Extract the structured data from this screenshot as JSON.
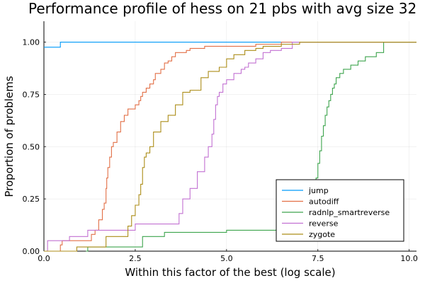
{
  "chart_data": {
    "type": "line",
    "title": "Performance profile of hess on 21 pbs with avg size 32",
    "xlabel": "Within this factor of the best (log scale)",
    "ylabel": "Proportion of problems",
    "xlim": [
      0,
      10.2
    ],
    "ylim": [
      0,
      1.1
    ],
    "xticks": [
      0,
      2.5,
      5,
      7.5,
      10
    ],
    "xtick_labels": [
      "0.0",
      "2.5",
      "5.0",
      "7.5",
      "10.0"
    ],
    "yticks": [
      0,
      0.25,
      0.5,
      0.75,
      1.0
    ],
    "ytick_labels": [
      "0.00",
      "0.25",
      "0.50",
      "0.75",
      "1.00"
    ],
    "grid": true,
    "legend_position": "bottom-right",
    "series": [
      {
        "name": "jump",
        "color": "#009af9",
        "x": [
          0,
          0.45,
          0.45,
          10.2
        ],
        "y": [
          0.976,
          0.976,
          1.0,
          1.0
        ]
      },
      {
        "name": "autodiff",
        "color": "#e26f46",
        "x": [
          0.4,
          0.45,
          0.5,
          1.3,
          1.4,
          1.5,
          1.6,
          1.65,
          1.7,
          1.72,
          1.75,
          1.8,
          1.85,
          1.9,
          2.0,
          2.1,
          2.2,
          2.3,
          2.5,
          2.6,
          2.65,
          2.7,
          2.8,
          2.9,
          3.0,
          3.05,
          3.2,
          3.3,
          3.4,
          3.5,
          3.6,
          3.8,
          3.9,
          4.0,
          4.2,
          4.4,
          4.6,
          5.0,
          5.2,
          5.8,
          5.9,
          6.5,
          10.2
        ],
        "y": [
          0.0,
          0.03,
          0.05,
          0.08,
          0.1,
          0.15,
          0.2,
          0.23,
          0.3,
          0.35,
          0.4,
          0.45,
          0.5,
          0.52,
          0.57,
          0.62,
          0.65,
          0.68,
          0.7,
          0.72,
          0.74,
          0.76,
          0.78,
          0.8,
          0.82,
          0.85,
          0.87,
          0.9,
          0.91,
          0.93,
          0.95,
          0.95,
          0.96,
          0.97,
          0.97,
          0.98,
          0.98,
          0.98,
          0.98,
          0.99,
          0.99,
          1.0,
          1.0
        ]
      },
      {
        "name": "radnlp_smartreverse",
        "color": "#3da44d",
        "x": [
          1.15,
          1.2,
          2.7,
          2.8,
          3.3,
          5.0,
          6.5,
          7.3,
          7.35,
          7.4,
          7.45,
          7.5,
          7.55,
          7.6,
          7.65,
          7.7,
          7.75,
          7.8,
          7.85,
          7.9,
          7.95,
          8.0,
          8.1,
          8.2,
          8.4,
          8.6,
          8.8,
          9.1,
          9.3,
          9.3,
          10.2
        ],
        "y": [
          0.0,
          0.02,
          0.07,
          0.07,
          0.09,
          0.1,
          0.12,
          0.15,
          0.22,
          0.28,
          0.35,
          0.42,
          0.48,
          0.55,
          0.6,
          0.65,
          0.69,
          0.72,
          0.75,
          0.78,
          0.8,
          0.83,
          0.85,
          0.87,
          0.89,
          0.91,
          0.93,
          0.95,
          0.97,
          1.0,
          1.0
        ]
      },
      {
        "name": "reverse",
        "color": "#c271d2",
        "x": [
          0.0,
          0.1,
          0.7,
          1.2,
          2.5,
          3.7,
          3.8,
          4.0,
          4.2,
          4.4,
          4.5,
          4.6,
          4.65,
          4.7,
          4.75,
          4.8,
          4.9,
          5.0,
          5.2,
          5.4,
          5.5,
          5.6,
          5.8,
          6.0,
          6.2,
          6.5,
          6.8,
          10.2
        ],
        "y": [
          0.0,
          0.05,
          0.07,
          0.1,
          0.13,
          0.18,
          0.25,
          0.3,
          0.38,
          0.45,
          0.5,
          0.56,
          0.63,
          0.7,
          0.74,
          0.76,
          0.8,
          0.82,
          0.85,
          0.87,
          0.88,
          0.9,
          0.92,
          0.95,
          0.96,
          0.97,
          1.0,
          1.0
        ]
      },
      {
        "name": "zygote",
        "color": "#ac8d18",
        "x": [
          0.0,
          0.9,
          1.7,
          2.3,
          2.4,
          2.5,
          2.6,
          2.65,
          2.7,
          2.75,
          2.8,
          2.9,
          3.0,
          3.2,
          3.4,
          3.6,
          3.8,
          4.0,
          4.3,
          4.5,
          4.8,
          5.0,
          5.2,
          5.5,
          5.8,
          6.0,
          6.5,
          7.0,
          10.2
        ],
        "y": [
          0.0,
          0.02,
          0.07,
          0.12,
          0.17,
          0.22,
          0.27,
          0.32,
          0.4,
          0.45,
          0.47,
          0.5,
          0.57,
          0.62,
          0.65,
          0.7,
          0.76,
          0.77,
          0.83,
          0.86,
          0.88,
          0.92,
          0.94,
          0.96,
          0.97,
          0.98,
          0.99,
          1.0,
          1.0
        ]
      }
    ]
  }
}
